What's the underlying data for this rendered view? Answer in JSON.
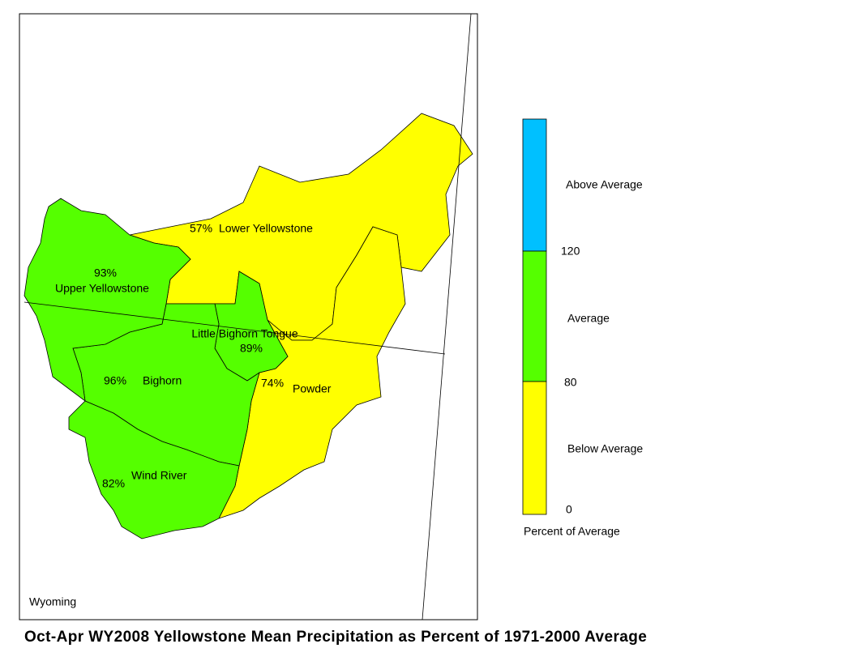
{
  "title": "Oct-Apr WY2008 Yellowstone Mean Precipitation as Percent of 1971-2000 Average",
  "state_label": "Wyoming",
  "basins": [
    {
      "name": "Lower Yellowstone",
      "percent": "57%",
      "color": "#ffff00"
    },
    {
      "name": "Upper Yellowstone",
      "percent": "93%",
      "color": "#55ff00"
    },
    {
      "name": "Little Bighorn Tongue",
      "percent": "89%",
      "color": "#55ff00"
    },
    {
      "name": "Bighorn",
      "percent": "96%",
      "color": "#55ff00"
    },
    {
      "name": "Powder",
      "percent": "74%",
      "color": "#ffff00"
    },
    {
      "name": "Wind River",
      "percent": "82%",
      "color": "#55ff00"
    }
  ],
  "legend": {
    "title": "Percent of Average",
    "classes": [
      {
        "label": "Above Average",
        "color": "#00c0ff"
      },
      {
        "label": "Average",
        "color": "#55ff00"
      },
      {
        "label": "Below Average",
        "color": "#ffff00"
      }
    ],
    "breaks": [
      120,
      80,
      0
    ]
  }
}
